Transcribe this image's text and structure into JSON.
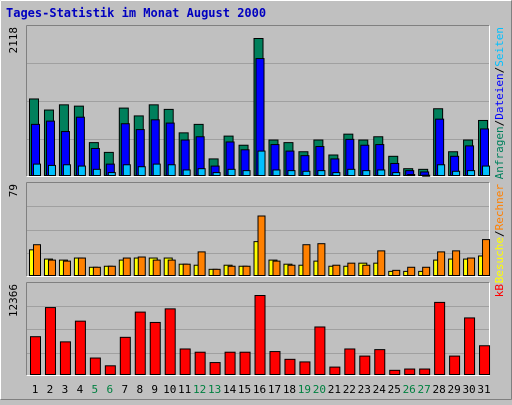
{
  "title": "Tages-Statistik im Monat August 2000",
  "colors": {
    "background": "#C0C0C0",
    "title": "#0000C0",
    "hits": "#00805C",
    "files": "#0000FF",
    "pages": "#00C0FF",
    "visits": "#FFFF00",
    "sites": "#FF8000",
    "kbytes": "#FF0000",
    "weekday_label": "#000000",
    "weekend_label": "#008040"
  },
  "chart_data": [
    {
      "type": "bar",
      "panel": "hits",
      "max_label": "2118",
      "ylim": [
        0,
        2118
      ],
      "categories": [
        "1",
        "2",
        "3",
        "4",
        "5",
        "6",
        "7",
        "8",
        "9",
        "10",
        "11",
        "12",
        "13",
        "14",
        "15",
        "16",
        "17",
        "18",
        "19",
        "20",
        "21",
        "22",
        "23",
        "24",
        "25",
        "26",
        "27",
        "28",
        "29",
        "30",
        "31"
      ],
      "legend": [
        {
          "text": "Anfragen",
          "color_key": "hits"
        },
        {
          "text": "/",
          "color_key": "weekday_label"
        },
        {
          "text": "Dateien",
          "color_key": "files"
        },
        {
          "text": "/",
          "color_key": "weekday_label"
        },
        {
          "text": "Seiten",
          "color_key": "pages"
        }
      ],
      "series": [
        {
          "name": "Anfragen",
          "color_key": "hits",
          "values": [
            1190,
            1020,
            1100,
            1080,
            520,
            370,
            1050,
            930,
            1100,
            1030,
            670,
            800,
            270,
            620,
            480,
            2118,
            560,
            520,
            380,
            560,
            330,
            650,
            560,
            610,
            310,
            120,
            110,
            1040,
            380,
            560,
            860
          ]
        },
        {
          "name": "Dateien",
          "color_key": "files",
          "values": [
            800,
            850,
            690,
            910,
            430,
            190,
            810,
            720,
            870,
            820,
            560,
            610,
            160,
            530,
            410,
            1810,
            490,
            390,
            320,
            460,
            270,
            570,
            480,
            490,
            200,
            90,
            70,
            880,
            310,
            470,
            730
          ]
        },
        {
          "name": "Seiten",
          "color_key": "pages",
          "values": [
            190,
            170,
            180,
            160,
            110,
            60,
            180,
            150,
            190,
            180,
            100,
            120,
            60,
            110,
            90,
            390,
            100,
            90,
            80,
            90,
            60,
            110,
            90,
            100,
            60,
            30,
            20,
            180,
            80,
            90,
            160
          ]
        }
      ]
    },
    {
      "type": "bar",
      "panel": "visits",
      "max_label": "79",
      "ylim": [
        0,
        79
      ],
      "categories": [
        "1",
        "2",
        "3",
        "4",
        "5",
        "6",
        "7",
        "8",
        "9",
        "10",
        "11",
        "12",
        "13",
        "14",
        "15",
        "16",
        "17",
        "18",
        "19",
        "20",
        "21",
        "22",
        "23",
        "24",
        "25",
        "26",
        "27",
        "28",
        "29",
        "30",
        "31"
      ],
      "legend": [
        {
          "text": "Besuche",
          "color_key": "visits"
        },
        {
          "text": "/",
          "color_key": "weekday_label"
        },
        {
          "text": "Rechner",
          "color_key": "sites"
        }
      ],
      "series": [
        {
          "name": "Besuche",
          "color_key": "visits",
          "values": [
            26,
            17,
            16,
            18,
            9,
            10,
            16,
            18,
            18,
            18,
            12,
            11,
            7,
            11,
            10,
            34,
            16,
            12,
            11,
            15,
            10,
            10,
            13,
            13,
            5,
            5,
            5,
            16,
            17,
            17,
            20
          ]
        },
        {
          "name": "Rechner",
          "color_key": "sites",
          "values": [
            31,
            16,
            15,
            18,
            9,
            10,
            18,
            19,
            16,
            16,
            12,
            24,
            7,
            10,
            10,
            59,
            15,
            11,
            31,
            32,
            11,
            13,
            11,
            25,
            6,
            9,
            9,
            24,
            25,
            18,
            36
          ]
        }
      ]
    },
    {
      "type": "bar",
      "panel": "kbytes",
      "max_label": "12366",
      "ylim": [
        0,
        12366
      ],
      "categories": [
        "1",
        "2",
        "3",
        "4",
        "5",
        "6",
        "7",
        "8",
        "9",
        "10",
        "11",
        "12",
        "13",
        "14",
        "15",
        "16",
        "17",
        "18",
        "19",
        "20",
        "21",
        "22",
        "23",
        "24",
        "25",
        "26",
        "27",
        "28",
        "29",
        "30",
        "31"
      ],
      "legend": [
        {
          "text": "kB",
          "color_key": "kbytes"
        }
      ],
      "series": [
        {
          "name": "kB",
          "color_key": "kbytes",
          "values": [
            6000,
            10500,
            5200,
            8400,
            2700,
            1500,
            5900,
            9800,
            8200,
            10300,
            4100,
            3600,
            2000,
            3600,
            3600,
            12366,
            3700,
            2500,
            2100,
            7500,
            1300,
            4100,
            3000,
            4000,
            800,
            1000,
            1000,
            11300,
            3000,
            8900,
            4600
          ]
        }
      ]
    }
  ],
  "x_labels": [
    {
      "text": "1",
      "weekend": false
    },
    {
      "text": "2",
      "weekend": false
    },
    {
      "text": "3",
      "weekend": false
    },
    {
      "text": "4",
      "weekend": false
    },
    {
      "text": "5",
      "weekend": true
    },
    {
      "text": "6",
      "weekend": true
    },
    {
      "text": "7",
      "weekend": false
    },
    {
      "text": "8",
      "weekend": false
    },
    {
      "text": "9",
      "weekend": false
    },
    {
      "text": "10",
      "weekend": false
    },
    {
      "text": "11",
      "weekend": false
    },
    {
      "text": "12",
      "weekend": true
    },
    {
      "text": "13",
      "weekend": true
    },
    {
      "text": "14",
      "weekend": false
    },
    {
      "text": "15",
      "weekend": false
    },
    {
      "text": "16",
      "weekend": false
    },
    {
      "text": "17",
      "weekend": false
    },
    {
      "text": "18",
      "weekend": false
    },
    {
      "text": "19",
      "weekend": true
    },
    {
      "text": "20",
      "weekend": true
    },
    {
      "text": "21",
      "weekend": false
    },
    {
      "text": "22",
      "weekend": false
    },
    {
      "text": "23",
      "weekend": false
    },
    {
      "text": "24",
      "weekend": false
    },
    {
      "text": "25",
      "weekend": false
    },
    {
      "text": "26",
      "weekend": true
    },
    {
      "text": "27",
      "weekend": true
    },
    {
      "text": "28",
      "weekend": false
    },
    {
      "text": "29",
      "weekend": false
    },
    {
      "text": "30",
      "weekend": false
    },
    {
      "text": "31",
      "weekend": false
    }
  ]
}
